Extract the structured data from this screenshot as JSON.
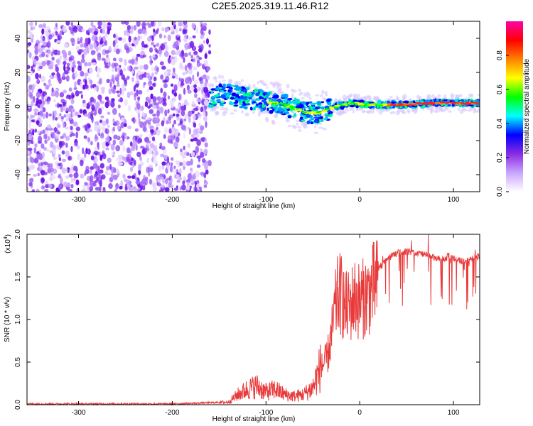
{
  "title": "C2E5.2025.319.11.46.R12",
  "colors": {
    "snr_line": "#e83a3a",
    "scatter_noise": "#7a3fe8",
    "background": "#ffffff"
  },
  "chart_data": [
    {
      "type": "heatmap",
      "xlabel": "Height of straight line (km)",
      "ylabel": "Frequency (Hz)",
      "xlim": [
        -355,
        128
      ],
      "ylim": [
        -50,
        50
      ],
      "x_ticks": [
        -300,
        -200,
        -100,
        0,
        100
      ],
      "y_ticks": [
        -40,
        -20,
        0,
        20,
        40
      ],
      "grid": false,
      "colorbar": {
        "label": "Normalized spectral amplitude",
        "range": [
          0,
          1
        ],
        "ticks": [
          "0.0",
          "0.2",
          "0.4",
          "0.6",
          "0.8"
        ],
        "colormap": [
          "#ffffff",
          "#c9a6ff",
          "#8a2be2",
          "#0000ff",
          "#00ffff",
          "#00ff00",
          "#ffff00",
          "#ff8000",
          "#ff0000",
          "#ff00aa"
        ]
      },
      "regions": {
        "noise_x_range": [
          -355,
          -160
        ],
        "signal_x_range": [
          -160,
          128
        ],
        "signal_frequency_center": [
          {
            "x": -160,
            "f": 6
          },
          {
            "x": -140,
            "f": 7
          },
          {
            "x": -120,
            "f": 5
          },
          {
            "x": -100,
            "f": 3
          },
          {
            "x": -80,
            "f": 1
          },
          {
            "x": -60,
            "f": -3
          },
          {
            "x": -45,
            "f": -4
          },
          {
            "x": -30,
            "f": -1
          },
          {
            "x": -10,
            "f": 2
          },
          {
            "x": 10,
            "f": 1
          },
          {
            "x": 40,
            "f": 1
          },
          {
            "x": 80,
            "f": 2
          },
          {
            "x": 128,
            "f": 2
          }
        ]
      }
    },
    {
      "type": "line",
      "xlabel": "Height of straight line (km)",
      "ylabel": "SNR (10 * v/v)",
      "y_multiplier": "(x10",
      "y_multiplier_exp": "4",
      "xlim": [
        -355,
        128
      ],
      "ylim": [
        0,
        2.0
      ],
      "x_ticks": [
        -300,
        -200,
        -100,
        0,
        100
      ],
      "y_ticks": [
        "0.0",
        "0.5",
        "1.0",
        "1.5",
        "2.0"
      ],
      "grid": false,
      "series": [
        {
          "x": [
            -355,
            -200,
            -140,
            -130,
            -120,
            -110,
            -100,
            -90,
            -80,
            -70,
            -60,
            -50,
            -45,
            -40,
            -35,
            -30,
            -27,
            -24,
            -20,
            -15,
            -10,
            -5,
            0,
            5,
            10,
            15,
            20,
            25,
            30,
            40,
            50,
            60,
            70,
            80,
            90,
            95,
            100,
            110,
            120,
            128
          ],
          "y": [
            0.01,
            0.01,
            0.03,
            0.12,
            0.18,
            0.22,
            0.15,
            0.18,
            0.12,
            0.1,
            0.12,
            0.2,
            0.35,
            0.5,
            0.6,
            0.9,
            1.2,
            1.4,
            1.45,
            1.25,
            1.3,
            1.4,
            1.35,
            1.4,
            1.45,
            1.55,
            1.6,
            1.65,
            1.72,
            1.78,
            1.8,
            1.78,
            1.76,
            1.72,
            1.7,
            1.75,
            1.72,
            1.68,
            1.72,
            1.74
          ]
        }
      ]
    }
  ]
}
